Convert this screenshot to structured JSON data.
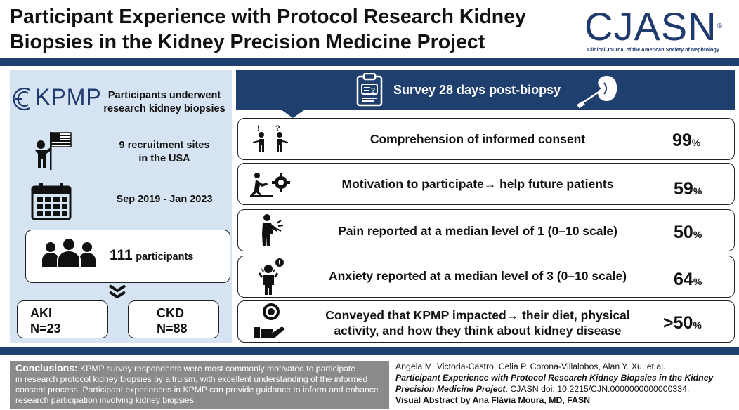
{
  "header": {
    "title_line1": "Participant Experience with Protocol Research Kidney",
    "title_line2": "Biopsies in the Kidney Precision Medicine Project",
    "logo_text": "CJASN",
    "logo_registered": "®",
    "logo_subtitle": "Clinical Journal of the American Society of Nephrology",
    "brand_color": "#1f3f6e"
  },
  "left": {
    "kpmp_logo": "KPMP",
    "underwent_line1": "Participants underwent",
    "underwent_line2": "research kidney biopsies",
    "sites_line1": "9 recruitment sites",
    "sites_line2": "in the USA",
    "dates": "Sep 2019 - Jan 2023",
    "participants_count": "111",
    "participants_label": "participants",
    "aki_label": "AKI",
    "aki_n": "N=23",
    "ckd_label": "CKD",
    "ckd_n": "N=88"
  },
  "survey": {
    "banner": "Survey 28 days post-biopsy",
    "rows": [
      {
        "text1": "Comprehension of informed consent",
        "text2": "",
        "pct": "99",
        "icon": "confused-people-icon"
      },
      {
        "text1": "Motivation to participate→ help future patients",
        "text2": "",
        "pct": "59",
        "icon": "push-gear-icon"
      },
      {
        "text1": "Pain reported at a median level of 1 (0–10 scale)",
        "text2": "",
        "pct": "50",
        "icon": "back-pain-icon"
      },
      {
        "text1": "Anxiety reported at a median level of 3 (0–10 scale)",
        "text2": "",
        "pct": "64",
        "icon": "anxiety-person-icon"
      },
      {
        "text1": "Conveyed that KPMP impacted→ their diet, physical",
        "text2": "activity, and how they think about kidney disease",
        "pct": ">50",
        "icon": "hand-badge-icon"
      }
    ],
    "pct_sign": "%"
  },
  "footer": {
    "conclusions_label": "Conclusions:",
    "conclusions_text1": " KPMP survey respondents were most commonly motivated to participate",
    "conclusions_text2": "in research protocol kidney biopsies by altruism, with excellent understanding of the informed",
    "conclusions_text3": "consent process. Participant experiences in KPMP can provide guidance to inform and enhance",
    "conclusions_text4": "research participation involving kidney biopsies.",
    "authors": "Angela M. Victoria-Castro, Celia P. Corona-Villalobos,  Alan Y. Xu, et al.",
    "article_title1": "Participant Experience with Protocol Research Kidney Biopsies in the Kidney",
    "article_title2": "Precision Medicine Project",
    "doi": ". CJASN doi: 10.2215/CJN.0000000000000334.",
    "visual_abstract": "Visual Abstract by Ana Flávia Moura, MD, FASN"
  }
}
